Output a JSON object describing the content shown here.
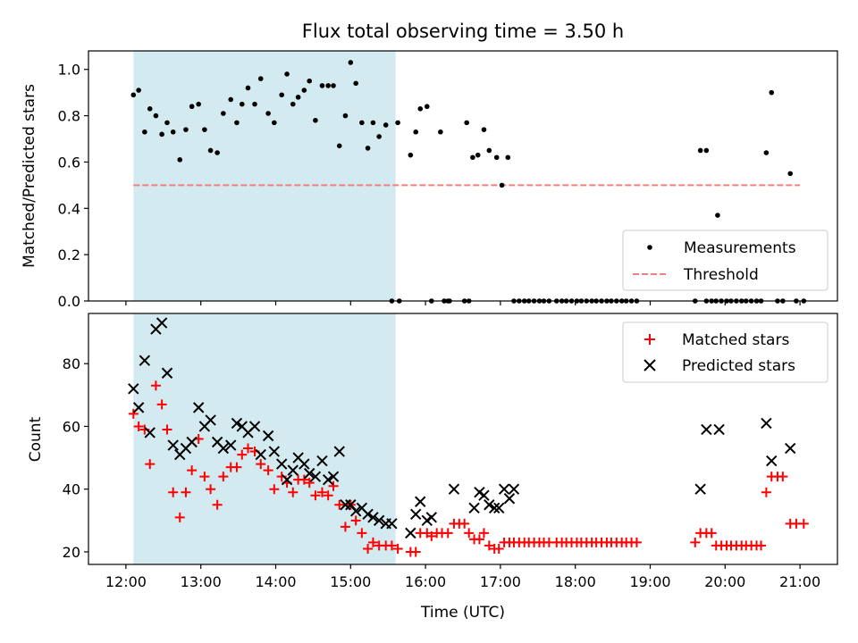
{
  "chart_data": {
    "title": "Flux total observing time = 3.50 h",
    "xlabel": "Time (UTC)",
    "x_ticks": [
      "12:00",
      "13:00",
      "14:00",
      "15:00",
      "16:00",
      "17:00",
      "18:00",
      "19:00",
      "20:00",
      "21:00"
    ],
    "x_tick_hours": [
      12,
      13,
      14,
      15,
      16,
      17,
      18,
      19,
      20,
      21
    ],
    "xlim": [
      11.5,
      21.5
    ],
    "shaded_span": {
      "x_start": 12.1,
      "x_end": 15.6,
      "color": "#d3eaf0"
    },
    "panels": [
      {
        "type": "scatter",
        "ylabel": "Matched/Predicted stars",
        "ylim": [
          0.0,
          1.08
        ],
        "y_ticks": [
          "0.0",
          "0.2",
          "0.4",
          "0.6",
          "0.8",
          "1.0"
        ],
        "y_tick_values": [
          0.0,
          0.2,
          0.4,
          0.6,
          0.8,
          1.0
        ],
        "legend": [
          "Measurements",
          "Threshold"
        ],
        "legend_position": "bottom-right",
        "threshold": {
          "name": "Threshold",
          "y": 0.5,
          "x_range": [
            12.1,
            21.0
          ],
          "color": "#f08080"
        },
        "series": [
          {
            "name": "Measurements",
            "marker": "dot",
            "color": "#000000",
            "x": [
              12.1,
              12.17,
              12.25,
              12.32,
              12.4,
              12.48,
              12.55,
              12.63,
              12.72,
              12.8,
              12.88,
              12.97,
              13.05,
              13.13,
              13.22,
              13.3,
              13.4,
              13.48,
              13.55,
              13.63,
              13.72,
              13.8,
              13.9,
              13.98,
              14.08,
              14.15,
              14.23,
              14.3,
              14.38,
              14.45,
              14.53,
              14.62,
              14.7,
              14.77,
              14.85,
              14.93,
              15.0,
              15.07,
              15.15,
              15.23,
              15.3,
              15.38,
              15.47,
              15.55,
              15.63,
              15.8,
              15.87,
              15.93,
              16.02,
              16.08,
              16.2,
              16.3,
              16.55,
              16.63,
              16.7,
              16.78,
              16.85,
              16.95,
              17.02,
              17.1,
              17.18,
              19.67,
              19.75,
              19.9,
              20.55,
              20.62,
              20.87,
              15.65,
              16.25,
              16.32,
              16.52,
              16.58,
              17.25,
              17.32,
              17.38,
              17.45,
              17.52,
              17.58,
              17.65,
              17.75,
              17.82,
              17.88,
              17.95,
              18.02,
              18.08,
              18.15,
              18.22,
              18.28,
              18.35,
              18.42,
              18.48,
              18.55,
              18.62,
              18.68,
              18.75,
              18.82,
              19.6,
              19.75,
              19.82,
              19.88,
              19.95,
              20.02,
              20.08,
              20.15,
              20.22,
              20.28,
              20.35,
              20.42,
              20.48,
              20.7,
              20.77,
              20.95,
              21.05
            ],
            "y": [
              0.89,
              0.91,
              0.73,
              0.83,
              0.8,
              0.72,
              0.77,
              0.73,
              0.61,
              0.74,
              0.84,
              0.85,
              0.74,
              0.65,
              0.64,
              0.81,
              0.87,
              0.77,
              0.85,
              0.92,
              0.85,
              0.96,
              0.81,
              0.77,
              0.89,
              0.98,
              0.85,
              0.88,
              0.91,
              0.95,
              0.78,
              0.93,
              0.93,
              0.93,
              0.67,
              0.8,
              1.03,
              0.94,
              0.77,
              0.66,
              0.77,
              0.71,
              0.76,
              0.0,
              0.77,
              0.63,
              0.73,
              0.83,
              0.84,
              0.0,
              0.73,
              0.0,
              0.77,
              0.62,
              0.63,
              0.74,
              0.65,
              0.62,
              0.5,
              0.62,
              0.0,
              0.65,
              0.65,
              0.37,
              0.64,
              0.9,
              0.55,
              0.0,
              0.0,
              0.0,
              0.0,
              0.0,
              0.0,
              0.0,
              0.0,
              0.0,
              0.0,
              0.0,
              0.0,
              0.0,
              0.0,
              0.0,
              0.0,
              0.0,
              0.0,
              0.0,
              0.0,
              0.0,
              0.0,
              0.0,
              0.0,
              0.0,
              0.0,
              0.0,
              0.0,
              0.0,
              0.0,
              0.0,
              0.0,
              0.0,
              0.0,
              0.0,
              0.0,
              0.0,
              0.0,
              0.0,
              0.0,
              0.0,
              0.0,
              0.0,
              0.0,
              0.0,
              0.0
            ]
          }
        ]
      },
      {
        "type": "scatter",
        "ylabel": "Count",
        "ylim": [
          16,
          96
        ],
        "y_ticks": [
          "20",
          "40",
          "60",
          "80"
        ],
        "y_tick_values": [
          20,
          40,
          60,
          80
        ],
        "legend": [
          "Matched stars",
          "Predicted stars"
        ],
        "legend_position": "top-right",
        "series": [
          {
            "name": "Matched stars",
            "marker": "plus",
            "color": "#ff0000",
            "x": [
              12.1,
              12.17,
              12.25,
              12.32,
              12.4,
              12.48,
              12.55,
              12.63,
              12.72,
              12.8,
              12.88,
              12.97,
              13.05,
              13.13,
              13.22,
              13.3,
              13.4,
              13.48,
              13.55,
              13.63,
              13.72,
              13.8,
              13.9,
              13.98,
              14.08,
              14.15,
              14.23,
              14.3,
              14.38,
              14.45,
              14.53,
              14.62,
              14.7,
              14.77,
              14.85,
              14.93,
              15.0,
              15.07,
              15.15,
              15.23,
              15.3,
              15.38,
              15.47,
              15.55,
              15.63,
              15.8,
              15.87,
              15.93,
              16.02,
              16.08,
              16.15,
              16.22,
              16.3,
              16.38,
              16.45,
              16.52,
              16.58,
              16.65,
              16.72,
              16.78,
              16.85,
              16.92,
              16.98,
              17.05,
              17.12,
              17.18,
              17.25,
              17.32,
              17.38,
              17.45,
              17.52,
              17.58,
              17.65,
              17.75,
              17.82,
              17.88,
              17.95,
              18.02,
              18.08,
              18.15,
              18.22,
              18.28,
              18.35,
              18.42,
              18.48,
              18.55,
              18.62,
              18.68,
              18.75,
              18.82,
              19.6,
              19.67,
              19.75,
              19.82,
              19.88,
              19.95,
              20.02,
              20.08,
              20.15,
              20.22,
              20.28,
              20.35,
              20.42,
              20.48,
              20.55,
              20.62,
              20.7,
              20.77,
              20.87,
              20.95,
              21.05
            ],
            "y": [
              64,
              60,
              59,
              48,
              73,
              67,
              59,
              39,
              31,
              39,
              46,
              56,
              44,
              40,
              35,
              44,
              47,
              47,
              51,
              53,
              52,
              48,
              46,
              40,
              44,
              42,
              39,
              43,
              43,
              42,
              38,
              39,
              38,
              41,
              35,
              28,
              35,
              30,
              26,
              21,
              23,
              22,
              22,
              22,
              21,
              20,
              20,
              26,
              26,
              25,
              26,
              26,
              26,
              29,
              29,
              29,
              26,
              24,
              24,
              26,
              22,
              21,
              21,
              23,
              23,
              23,
              23,
              23,
              23,
              23,
              23,
              23,
              23,
              23,
              23,
              23,
              23,
              23,
              23,
              23,
              23,
              23,
              23,
              23,
              23,
              23,
              23,
              23,
              23,
              23,
              23,
              26,
              26,
              26,
              22,
              22,
              22,
              22,
              22,
              22,
              22,
              22,
              22,
              22,
              39,
              44,
              44,
              44,
              29,
              29,
              29
            ]
          },
          {
            "name": "Predicted stars",
            "marker": "x",
            "color": "#000000",
            "x": [
              12.1,
              12.17,
              12.25,
              12.32,
              12.4,
              12.48,
              12.55,
              12.63,
              12.72,
              12.8,
              12.88,
              12.97,
              13.05,
              13.13,
              13.22,
              13.3,
              13.4,
              13.48,
              13.55,
              13.63,
              13.72,
              13.8,
              13.9,
              13.98,
              14.08,
              14.15,
              14.23,
              14.3,
              14.38,
              14.45,
              14.53,
              14.62,
              14.7,
              14.77,
              14.85,
              14.93,
              15.0,
              15.07,
              15.15,
              15.23,
              15.3,
              15.38,
              15.47,
              15.55,
              15.8,
              15.87,
              15.93,
              16.02,
              16.08,
              16.38,
              16.65,
              16.72,
              16.78,
              16.85,
              16.92,
              16.98,
              17.05,
              17.12,
              17.18,
              19.67,
              19.75,
              19.92,
              20.55,
              20.62,
              20.87
            ],
            "y": [
              72,
              66,
              81,
              58,
              91,
              93,
              77,
              54,
              51,
              53,
              55,
              66,
              60,
              62,
              55,
              53,
              54,
              61,
              60,
              58,
              60,
              51,
              57,
              52,
              48,
              43,
              46,
              50,
              48,
              45,
              44,
              49,
              43,
              44,
              52,
              35,
              35,
              33,
              34,
              32,
              31,
              30,
              29,
              29,
              26,
              32,
              36,
              30,
              31,
              40,
              34,
              39,
              38,
              35,
              34,
              34,
              40,
              37,
              40,
              40,
              59,
              59,
              61,
              49,
              53
            ]
          }
        ]
      }
    ]
  }
}
